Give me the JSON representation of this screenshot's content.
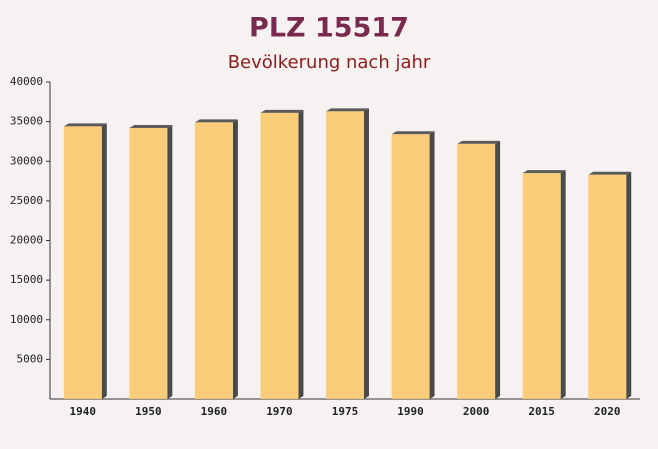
{
  "chart_data": {
    "type": "bar",
    "title": "PLZ 15517",
    "subtitle": "Bevölkerung nach jahr",
    "categories": [
      "1940",
      "1950",
      "1960",
      "1970",
      "1975",
      "1990",
      "2000",
      "2015",
      "2020"
    ],
    "values": [
      34400,
      34200,
      34900,
      36100,
      36300,
      33400,
      32200,
      28500,
      28300
    ],
    "color": "#fcc96e",
    "ylim": [
      0,
      40000
    ],
    "yticks": [
      5000,
      10000,
      15000,
      20000,
      25000,
      30000,
      35000,
      40000
    ],
    "grid": false
  }
}
